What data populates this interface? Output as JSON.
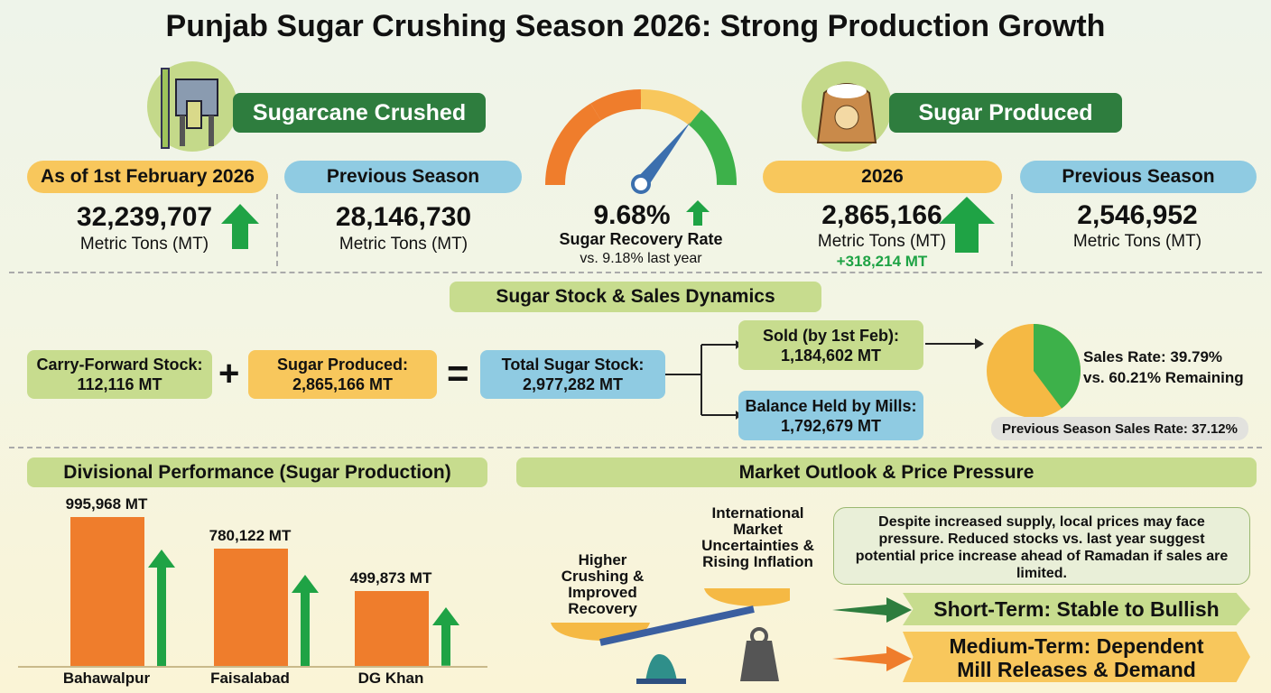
{
  "title": "Punjab Sugar Crushing Season 2026: Strong Production Growth",
  "crushed": {
    "heading": "Sugarcane Crushed",
    "current_label": "As of 1st February 2026",
    "current_value": "32,239,707",
    "current_unit": "Metric Tons (MT)",
    "prev_label": "Previous Season",
    "prev_value": "28,146,730",
    "prev_unit": "Metric Tons (MT)"
  },
  "recovery": {
    "value": "9.68%",
    "label": "Sugar Recovery Rate",
    "compare": "vs. 9.18% last year",
    "gauge_fraction": 0.68
  },
  "produced": {
    "heading": "Sugar Produced",
    "current_label": "2026",
    "current_value": "2,865,166",
    "current_unit": "Metric Tons (MT)",
    "change": "+318,214 MT",
    "prev_label": "Previous Season",
    "prev_value": "2,546,952",
    "prev_unit": "Metric Tons (MT)"
  },
  "stock": {
    "heading": "Sugar Stock & Sales Dynamics",
    "carry_label": "Carry-Forward Stock:",
    "carry_value": "112,116 MT",
    "plus": "+",
    "produced_label": "Sugar Produced:",
    "produced_value": "2,865,166 MT",
    "equals": "=",
    "total_label": "Total Sugar Stock:",
    "total_value": "2,977,282 MT",
    "sold_label": "Sold (by 1st Feb):",
    "sold_value": "1,184,602 MT",
    "balance_label": "Balance Held by Mills:",
    "balance_value": "1,792,679 MT",
    "sales_rate": "Sales Rate: 39.79%",
    "remaining": "vs. 60.21% Remaining",
    "sales_pct": 39.79,
    "prev_rate": "Previous Season Sales Rate: 37.12%"
  },
  "chart_data": {
    "type": "bar",
    "title": "Divisional Performance (Sugar Production)",
    "categories": [
      "Bahawalpur",
      "Faisalabad",
      "DG Khan"
    ],
    "values": [
      995968,
      780122,
      499873
    ],
    "labels": [
      "995,968 MT",
      "780,122 MT",
      "499,873 MT"
    ],
    "xlabel": "",
    "ylabel": "",
    "ylim": [
      0,
      1000000
    ]
  },
  "market": {
    "heading": "Market Outlook & Price Pressure",
    "left_pan": "Higher Crushing & Improved Recovery",
    "right_pan": "International Market Uncertainties & Rising Inflation",
    "note": "Despite increased supply, local prices may face pressure. Reduced stocks vs. last year suggest potential price increase ahead of Ramadan if sales are limited.",
    "short_term": "Short-Term: Stable to Bullish",
    "medium_term": "Medium-Term: Dependent Mill Releases & Demand"
  },
  "colors": {
    "green": "#2e7d3e",
    "orange": "#ef7d2c",
    "yellow": "#f8c75c",
    "blue": "#8fcbe2",
    "arrow": "#1fa345"
  }
}
